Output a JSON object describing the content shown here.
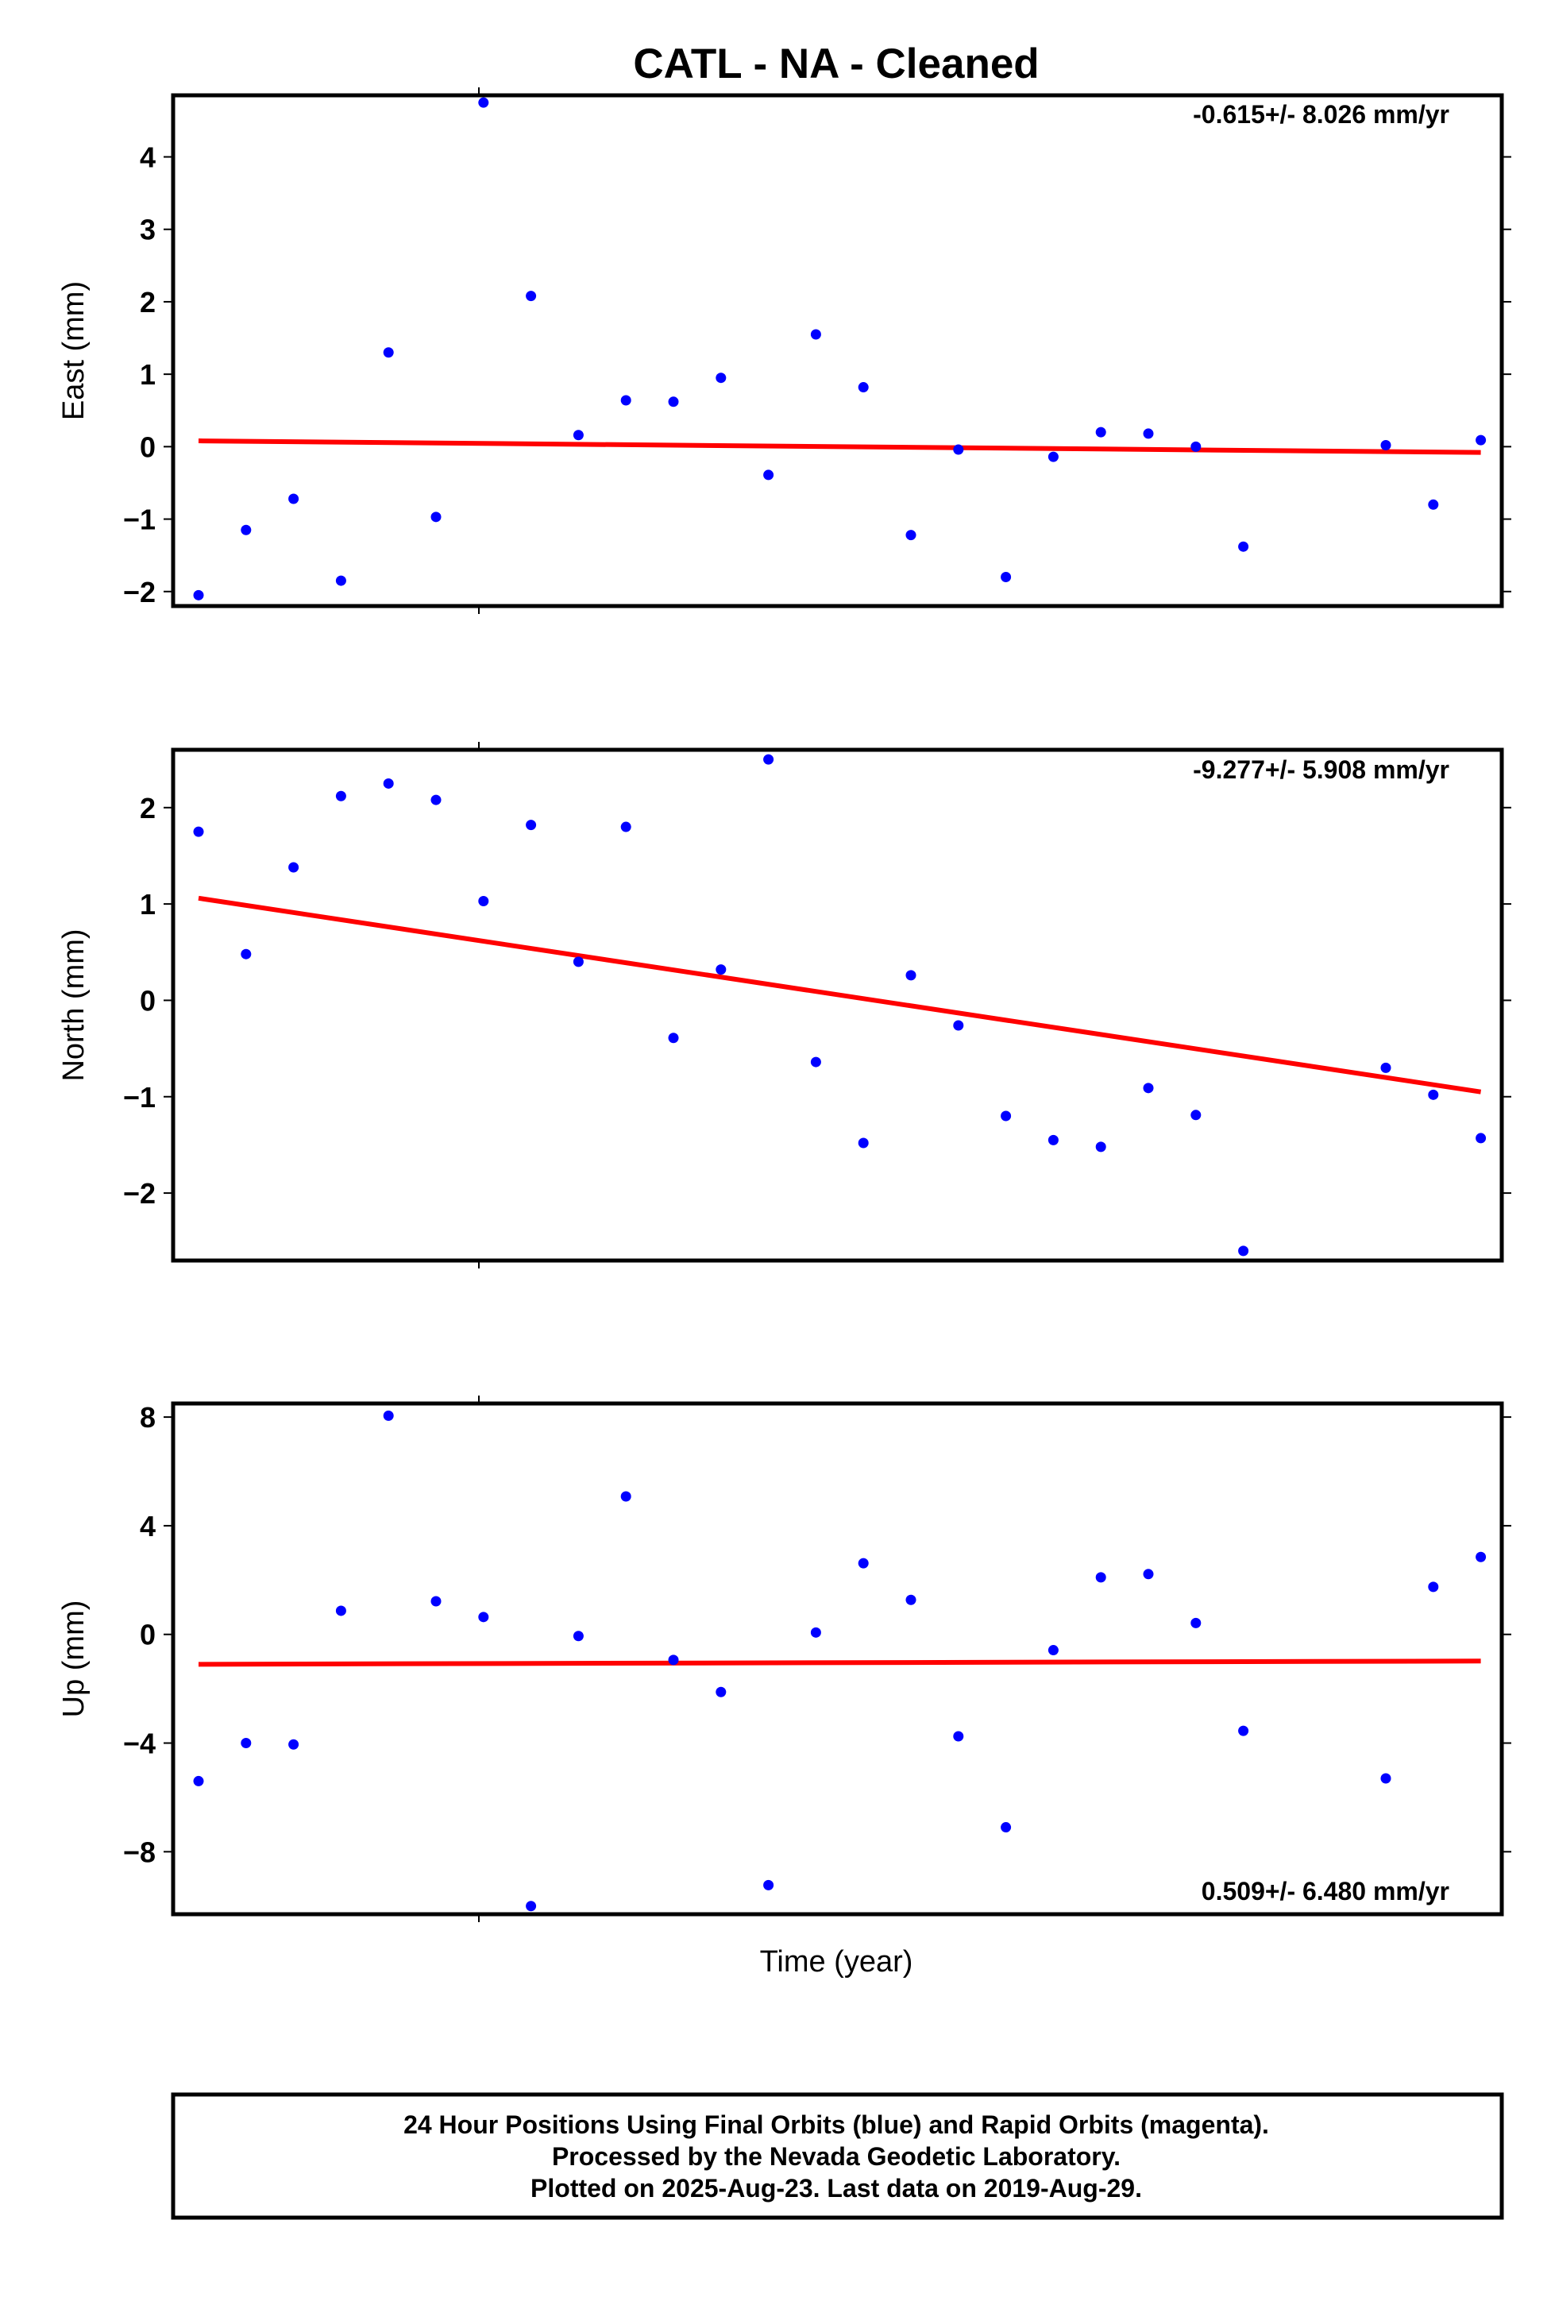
{
  "title": "CATL  - NA - Cleaned",
  "xlabel": "Time (year)",
  "colors": {
    "points": "#0000ff",
    "trend": "#ff0000",
    "frame": "#000000"
  },
  "footer": {
    "line1": "24 Hour Positions Using Final Orbits (blue) and Rapid Orbits (magenta).",
    "line2": "Processed by the Nevada Geodetic Laboratory.",
    "line3": "Plotted on 2025-Aug-23. Last data on 2019-Aug-29."
  },
  "chart_data": [
    {
      "type": "scatter",
      "ylabel": "East (mm)",
      "rate": "-0.615+/- 8.026 mm/yr",
      "ylim": [
        -2.2,
        4.85
      ],
      "yticks": [
        4,
        3,
        2,
        1,
        0,
        -1,
        -2
      ],
      "ytick_labels": [
        "4",
        "3",
        "2",
        "1",
        "0",
        "−1",
        "−2"
      ],
      "xlim": [
        0,
        28.1
      ],
      "x": [
        0,
        1,
        2,
        3,
        4,
        5,
        6,
        7,
        8,
        9,
        10,
        11,
        12,
        13,
        14,
        15,
        16,
        17,
        18,
        19,
        20,
        21,
        22,
        25,
        26,
        27
      ],
      "y": [
        -2.05,
        -1.15,
        -0.72,
        -1.85,
        1.3,
        -0.97,
        4.75,
        2.08,
        0.16,
        0.64,
        0.62,
        0.95,
        -0.39,
        1.55,
        0.82,
        -1.22,
        -0.04,
        -1.8,
        -0.14,
        0.2,
        0.18,
        0.0,
        -1.38,
        0.02,
        -0.8,
        0.09
      ],
      "trend": {
        "x": [
          0,
          27
        ],
        "y": [
          0.08,
          -0.08
        ]
      }
    },
    {
      "type": "scatter",
      "ylabel": "North (mm)",
      "rate": "-9.277+/- 5.908 mm/yr",
      "ylim": [
        -2.7,
        2.6
      ],
      "yticks": [
        2,
        1,
        0,
        -1,
        -2
      ],
      "ytick_labels": [
        "2",
        "1",
        "0",
        "−1",
        "−2"
      ],
      "xlim": [
        0,
        28.1
      ],
      "x": [
        0,
        1,
        2,
        3,
        4,
        5,
        6,
        7,
        8,
        9,
        10,
        11,
        12,
        13,
        14,
        15,
        16,
        17,
        18,
        19,
        20,
        21,
        22,
        25,
        26,
        27
      ],
      "y": [
        1.75,
        0.48,
        1.38,
        2.12,
        2.25,
        2.08,
        1.03,
        1.82,
        0.4,
        1.8,
        -0.39,
        0.32,
        2.5,
        -0.64,
        -1.48,
        0.26,
        -0.26,
        -1.2,
        -1.45,
        -1.52,
        -0.91,
        -1.19,
        -2.6,
        -0.7,
        -0.98,
        -1.43
      ],
      "trend": {
        "x": [
          0,
          27
        ],
        "y": [
          1.06,
          -0.95
        ]
      }
    },
    {
      "type": "scatter",
      "ylabel": "Up (mm)",
      "rate": "0.509+/- 6.480 mm/yr",
      "ylim": [
        -10.3,
        8.5
      ],
      "yticks": [
        8,
        4,
        0,
        -4,
        -8
      ],
      "ytick_labels": [
        "8",
        "4",
        "0",
        "−4",
        "−8"
      ],
      "xlim": [
        0,
        28.1
      ],
      "x": [
        0,
        1,
        2,
        3,
        4,
        5,
        6,
        7,
        8,
        9,
        10,
        11,
        12,
        13,
        14,
        15,
        16,
        17,
        18,
        19,
        20,
        21,
        22,
        25,
        26,
        27
      ],
      "y": [
        -5.4,
        -4.0,
        -4.05,
        0.87,
        8.05,
        1.22,
        0.64,
        -10.0,
        -0.06,
        5.08,
        -0.94,
        -2.12,
        -9.23,
        0.07,
        2.62,
        1.27,
        -3.75,
        -7.1,
        -0.58,
        2.1,
        2.22,
        0.42,
        -3.55,
        -5.3,
        1.75,
        2.85
      ],
      "trend": {
        "x": [
          0,
          27
        ],
        "y": [
          -1.1,
          -0.98
        ]
      }
    }
  ]
}
